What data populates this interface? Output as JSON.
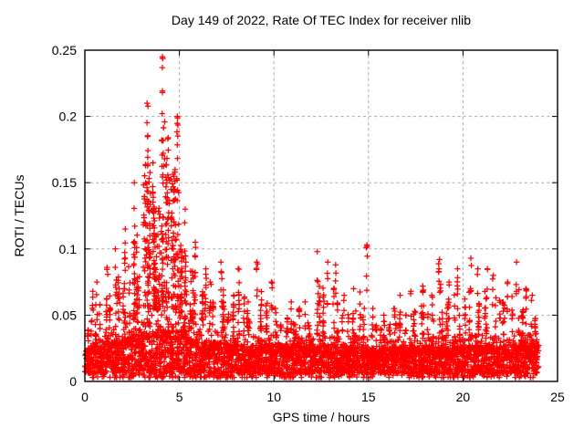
{
  "title": "Day 149 of 2022, Rate Of TEC Index for receiver nlib",
  "x_axis": {
    "label": "GPS time / hours",
    "min": 0,
    "max": 25,
    "tick_values": [
      0,
      5,
      10,
      15,
      20,
      25
    ],
    "tick_labels": [
      "0",
      "5",
      "10",
      "15",
      "20",
      "25"
    ]
  },
  "y_axis": {
    "label": "ROTI / TECUs",
    "min": 0,
    "max": 0.25,
    "tick_values": [
      0,
      0.05,
      0.1,
      0.15,
      0.2,
      0.25
    ],
    "tick_labels": [
      "0",
      "0.05",
      "0.1",
      "0.15",
      "0.2",
      "0.25"
    ]
  },
  "colors": {
    "marker": "#ff0000",
    "grid": "#a8a8a8",
    "border": "#000000",
    "background": "#ffffff",
    "text": "#000000"
  },
  "chart_data": {
    "type": "scatter",
    "marker_shape": "plus",
    "series_name": "ROTI",
    "x_data_range": [
      0,
      24
    ],
    "peak": {
      "hour": 4.45,
      "roti": 0.245
    },
    "grid": "dashed, at interior major ticks both axes",
    "legend": "none",
    "bins_description": "0.5-hour bins; columns = [start_hour, dense_band_top_TECU, bin_max_TECU, mid_level_point_count]",
    "bins": [
      [
        0.0,
        0.034,
        0.068,
        10
      ],
      [
        0.5,
        0.034,
        0.075,
        12
      ],
      [
        1.0,
        0.038,
        0.086,
        16
      ],
      [
        1.5,
        0.04,
        0.1,
        18
      ],
      [
        2.0,
        0.044,
        0.115,
        22
      ],
      [
        2.5,
        0.048,
        0.15,
        42
      ],
      [
        3.0,
        0.052,
        0.21,
        72
      ],
      [
        3.5,
        0.054,
        0.165,
        82
      ],
      [
        4.0,
        0.054,
        0.245,
        85
      ],
      [
        4.5,
        0.052,
        0.2,
        72
      ],
      [
        5.0,
        0.048,
        0.13,
        46
      ],
      [
        5.5,
        0.044,
        0.105,
        30
      ],
      [
        6.0,
        0.04,
        0.085,
        20
      ],
      [
        6.5,
        0.038,
        0.075,
        16
      ],
      [
        7.0,
        0.038,
        0.09,
        16
      ],
      [
        7.5,
        0.036,
        0.065,
        12
      ],
      [
        8.0,
        0.036,
        0.085,
        14
      ],
      [
        8.5,
        0.035,
        0.06,
        10
      ],
      [
        9.0,
        0.035,
        0.09,
        14
      ],
      [
        9.5,
        0.035,
        0.075,
        12
      ],
      [
        10.0,
        0.033,
        0.055,
        10
      ],
      [
        10.5,
        0.033,
        0.06,
        10
      ],
      [
        11.0,
        0.033,
        0.055,
        10
      ],
      [
        11.5,
        0.033,
        0.06,
        10
      ],
      [
        12.0,
        0.035,
        0.098,
        16
      ],
      [
        12.5,
        0.035,
        0.09,
        14
      ],
      [
        13.0,
        0.035,
        0.088,
        14
      ],
      [
        13.5,
        0.033,
        0.065,
        10
      ],
      [
        14.0,
        0.032,
        0.07,
        10
      ],
      [
        14.5,
        0.033,
        0.103,
        14
      ],
      [
        15.0,
        0.031,
        0.055,
        9
      ],
      [
        15.5,
        0.03,
        0.05,
        8
      ],
      [
        16.0,
        0.031,
        0.055,
        9
      ],
      [
        16.5,
        0.032,
        0.065,
        10
      ],
      [
        17.0,
        0.033,
        0.068,
        11
      ],
      [
        17.5,
        0.032,
        0.072,
        10
      ],
      [
        18.0,
        0.033,
        0.065,
        10
      ],
      [
        18.5,
        0.033,
        0.092,
        13
      ],
      [
        19.0,
        0.033,
        0.075,
        11
      ],
      [
        19.5,
        0.033,
        0.085,
        12
      ],
      [
        20.0,
        0.035,
        0.093,
        15
      ],
      [
        20.5,
        0.035,
        0.085,
        13
      ],
      [
        21.0,
        0.035,
        0.085,
        13
      ],
      [
        21.5,
        0.033,
        0.08,
        11
      ],
      [
        22.0,
        0.033,
        0.075,
        11
      ],
      [
        22.5,
        0.035,
        0.09,
        12
      ],
      [
        23.0,
        0.036,
        0.07,
        11
      ],
      [
        23.5,
        0.035,
        0.065,
        10
      ]
    ],
    "base_points_per_bin": 85,
    "base_value_floor": 0.003
  }
}
